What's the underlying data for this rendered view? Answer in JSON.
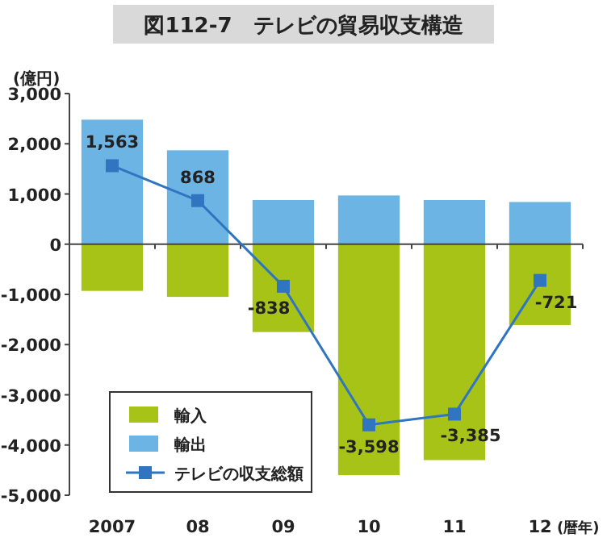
{
  "chart_data": {
    "type": "bar",
    "title": "図112-7　テレビの貿易収支構造",
    "ylabel": "(億円)",
    "xlabel": "(暦年)",
    "categories": [
      "2007",
      "08",
      "09",
      "10",
      "11",
      "12"
    ],
    "stacked": true,
    "series": [
      {
        "name": "輸入",
        "color": "#a8c318",
        "values": [
          -930,
          -1050,
          -1750,
          -4600,
          -4300,
          -1610
        ]
      },
      {
        "name": "輸出",
        "color": "#6cb4e4",
        "values": [
          2480,
          1870,
          880,
          970,
          880,
          840
        ]
      },
      {
        "name": "テレビの収支総額",
        "type": "line",
        "color": "#2f75c0",
        "marker": "square",
        "values": [
          1563,
          868,
          -838,
          -3598,
          -3385,
          -721
        ],
        "value_labels": [
          "1,563",
          "868",
          "-838",
          "-3,598",
          "-3,385",
          "-721"
        ]
      }
    ],
    "ylim": [
      -5000,
      3000
    ],
    "yticks": [
      {
        "value": -5000,
        "label": "-5,000"
      },
      {
        "value": -4000,
        "label": "-4,000"
      },
      {
        "value": -3000,
        "label": "-3,000"
      },
      {
        "value": -2000,
        "label": "-2,000"
      },
      {
        "value": -1000,
        "label": "-1,000"
      },
      0,
      {
        "value": 1000,
        "label": "1,000"
      },
      {
        "value": 2000,
        "label": "2,000"
      },
      {
        "value": 3000,
        "label": "3,000"
      }
    ],
    "legend": "bottom left"
  }
}
